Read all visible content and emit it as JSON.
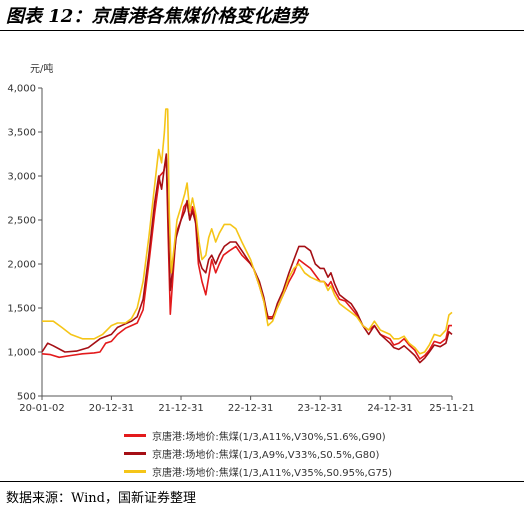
{
  "title": "图表 12：京唐港各焦煤价格变化趋势",
  "source": "数据来源：Wind，国新证券整理",
  "chart_data": {
    "type": "line",
    "ylabel": "元/吨",
    "ylim": [
      500,
      4000
    ],
    "yticks": [
      500,
      1000,
      1500,
      2000,
      2500,
      3000,
      3500,
      4000
    ],
    "ytick_labels": [
      "500",
      "1,000",
      "1,500",
      "2,000",
      "2,500",
      "3,000",
      "3,500",
      "4,000"
    ],
    "xlim": [
      "2020-01-02",
      "2025-11-21"
    ],
    "xtick_labels": [
      "20-01-02",
      "20-12-31",
      "21-12-31",
      "22-12-31",
      "23-12-31",
      "24-12-31",
      "25-11-21"
    ],
    "xtick_dates": [
      "2020-01-02",
      "2020-12-31",
      "2021-12-31",
      "2022-12-31",
      "2023-12-31",
      "2024-12-31",
      "2025-11-21"
    ],
    "grid": false,
    "legend_position": "bottom",
    "series": [
      {
        "name": "京唐港:场地价:焦煤(1/3,A11%,V30%,S1.6%,G90)",
        "color": "#e31a1c",
        "points": [
          [
            "2020-01-02",
            980
          ],
          [
            "2020-02-15",
            970
          ],
          [
            "2020-04-01",
            940
          ],
          [
            "2020-06-01",
            960
          ],
          [
            "2020-08-01",
            980
          ],
          [
            "2020-10-01",
            990
          ],
          [
            "2020-11-01",
            1000
          ],
          [
            "2020-12-01",
            1100
          ],
          [
            "2020-12-31",
            1120
          ],
          [
            "2021-02-01",
            1200
          ],
          [
            "2021-03-15",
            1270
          ],
          [
            "2021-04-15",
            1300
          ],
          [
            "2021-05-15",
            1330
          ],
          [
            "2021-06-15",
            1480
          ],
          [
            "2021-07-15",
            2000
          ],
          [
            "2021-08-15",
            2580
          ],
          [
            "2021-09-10",
            3000
          ],
          [
            "2021-10-01",
            3050
          ],
          [
            "2021-10-15",
            3200
          ],
          [
            "2021-10-25",
            2300
          ],
          [
            "2021-11-05",
            1430
          ],
          [
            "2021-11-20",
            1900
          ],
          [
            "2021-12-05",
            2350
          ],
          [
            "2021-12-31",
            2500
          ],
          [
            "2022-01-15",
            2650
          ],
          [
            "2022-02-01",
            2700
          ],
          [
            "2022-02-15",
            2500
          ],
          [
            "2022-03-01",
            2650
          ],
          [
            "2022-03-15",
            2550
          ],
          [
            "2022-04-01",
            2000
          ],
          [
            "2022-04-20",
            1800
          ],
          [
            "2022-05-10",
            1650
          ],
          [
            "2022-05-25",
            1850
          ],
          [
            "2022-06-10",
            2050
          ],
          [
            "2022-07-01",
            1900
          ],
          [
            "2022-07-20",
            2000
          ],
          [
            "2022-08-10",
            2100
          ],
          [
            "2022-09-10",
            2150
          ],
          [
            "2022-10-15",
            2200
          ],
          [
            "2022-11-15",
            2100
          ],
          [
            "2022-12-31",
            2000
          ],
          [
            "2023-01-15",
            1950
          ],
          [
            "2023-02-15",
            1750
          ],
          [
            "2023-03-10",
            1580
          ],
          [
            "2023-04-01",
            1400
          ],
          [
            "2023-04-25",
            1400
          ],
          [
            "2023-05-20",
            1500
          ],
          [
            "2023-06-20",
            1650
          ],
          [
            "2023-07-20",
            1800
          ],
          [
            "2023-08-15",
            1900
          ],
          [
            "2023-09-10",
            2050
          ],
          [
            "2023-10-10",
            2000
          ],
          [
            "2023-11-10",
            1950
          ],
          [
            "2023-12-31",
            1800
          ],
          [
            "2024-01-20",
            1800
          ],
          [
            "2024-02-10",
            1750
          ],
          [
            "2024-02-25",
            1800
          ],
          [
            "2024-03-15",
            1700
          ],
          [
            "2024-04-10",
            1600
          ],
          [
            "2024-05-10",
            1580
          ],
          [
            "2024-06-10",
            1500
          ],
          [
            "2024-07-10",
            1420
          ],
          [
            "2024-08-10",
            1300
          ],
          [
            "2024-09-10",
            1250
          ],
          [
            "2024-10-10",
            1300
          ],
          [
            "2024-11-10",
            1200
          ],
          [
            "2024-12-31",
            1150
          ],
          [
            "2025-01-20",
            1080
          ],
          [
            "2025-02-15",
            1100
          ],
          [
            "2025-03-15",
            1150
          ],
          [
            "2025-04-10",
            1080
          ],
          [
            "2025-05-10",
            1020
          ],
          [
            "2025-06-05",
            920
          ],
          [
            "2025-07-01",
            960
          ],
          [
            "2025-07-25",
            1020
          ],
          [
            "2025-08-20",
            1120
          ],
          [
            "2025-09-20",
            1100
          ],
          [
            "2025-10-20",
            1150
          ],
          [
            "2025-11-05",
            1300
          ],
          [
            "2025-11-21",
            1300
          ]
        ]
      },
      {
        "name": "京唐港:场地价:焦煤(1/3,A9%,V33%,S0.5%,G80)",
        "color": "#a50f15",
        "points": [
          [
            "2020-01-02",
            1000
          ],
          [
            "2020-02-01",
            1100
          ],
          [
            "2020-03-01",
            1070
          ],
          [
            "2020-05-01",
            1000
          ],
          [
            "2020-07-01",
            1010
          ],
          [
            "2020-09-01",
            1050
          ],
          [
            "2020-11-01",
            1150
          ],
          [
            "2020-12-31",
            1200
          ],
          [
            "2021-02-01",
            1280
          ],
          [
            "2021-03-15",
            1320
          ],
          [
            "2021-04-15",
            1350
          ],
          [
            "2021-05-15",
            1400
          ],
          [
            "2021-06-15",
            1600
          ],
          [
            "2021-07-15",
            2100
          ],
          [
            "2021-08-15",
            2700
          ],
          [
            "2021-09-05",
            3000
          ],
          [
            "2021-09-20",
            2850
          ],
          [
            "2021-10-05",
            3100
          ],
          [
            "2021-10-15",
            3250
          ],
          [
            "2021-10-25",
            2500
          ],
          [
            "2021-11-05",
            1700
          ],
          [
            "2021-11-20",
            2000
          ],
          [
            "2021-12-05",
            2300
          ],
          [
            "2021-12-31",
            2500
          ],
          [
            "2022-01-20",
            2600
          ],
          [
            "2022-02-01",
            2720
          ],
          [
            "2022-02-15",
            2500
          ],
          [
            "2022-03-01",
            2600
          ],
          [
            "2022-03-20",
            2450
          ],
          [
            "2022-04-05",
            2050
          ],
          [
            "2022-04-20",
            1950
          ],
          [
            "2022-05-10",
            1900
          ],
          [
            "2022-05-25",
            2050
          ],
          [
            "2022-06-10",
            2100
          ],
          [
            "2022-07-01",
            2000
          ],
          [
            "2022-07-20",
            2100
          ],
          [
            "2022-08-15",
            2200
          ],
          [
            "2022-09-15",
            2250
          ],
          [
            "2022-10-15",
            2250
          ],
          [
            "2022-11-15",
            2150
          ],
          [
            "2022-12-31",
            2000
          ],
          [
            "2023-01-15",
            1950
          ],
          [
            "2023-02-15",
            1800
          ],
          [
            "2023-03-10",
            1620
          ],
          [
            "2023-04-01",
            1380
          ],
          [
            "2023-04-25",
            1380
          ],
          [
            "2023-05-20",
            1550
          ],
          [
            "2023-06-20",
            1700
          ],
          [
            "2023-07-20",
            1900
          ],
          [
            "2023-08-15",
            2050
          ],
          [
            "2023-09-10",
            2200
          ],
          [
            "2023-10-10",
            2200
          ],
          [
            "2023-11-10",
            2150
          ],
          [
            "2023-12-05",
            2000
          ],
          [
            "2023-12-31",
            1950
          ],
          [
            "2024-01-20",
            1950
          ],
          [
            "2024-02-10",
            1850
          ],
          [
            "2024-02-25",
            1900
          ],
          [
            "2024-03-15",
            1780
          ],
          [
            "2024-04-10",
            1650
          ],
          [
            "2024-05-10",
            1600
          ],
          [
            "2024-06-10",
            1550
          ],
          [
            "2024-07-10",
            1450
          ],
          [
            "2024-08-10",
            1300
          ],
          [
            "2024-09-10",
            1200
          ],
          [
            "2024-10-10",
            1300
          ],
          [
            "2024-11-10",
            1200
          ],
          [
            "2024-12-31",
            1100
          ],
          [
            "2025-01-20",
            1050
          ],
          [
            "2025-02-15",
            1030
          ],
          [
            "2025-03-15",
            1070
          ],
          [
            "2025-04-10",
            1020
          ],
          [
            "2025-05-10",
            960
          ],
          [
            "2025-06-05",
            880
          ],
          [
            "2025-07-01",
            930
          ],
          [
            "2025-07-25",
            1000
          ],
          [
            "2025-08-20",
            1080
          ],
          [
            "2025-09-20",
            1060
          ],
          [
            "2025-10-20",
            1100
          ],
          [
            "2025-11-05",
            1230
          ],
          [
            "2025-11-21",
            1200
          ]
        ]
      },
      {
        "name": "京唐港:场地价:焦煤(1/3,A11%,V35%,S0.95%,G75)",
        "color": "#f5c518",
        "points": [
          [
            "2020-01-02",
            1350
          ],
          [
            "2020-03-01",
            1350
          ],
          [
            "2020-04-15",
            1280
          ],
          [
            "2020-06-01",
            1200
          ],
          [
            "2020-08-01",
            1150
          ],
          [
            "2020-10-01",
            1150
          ],
          [
            "2020-11-15",
            1200
          ],
          [
            "2020-12-31",
            1300
          ],
          [
            "2021-02-01",
            1330
          ],
          [
            "2021-03-15",
            1330
          ],
          [
            "2021-04-15",
            1380
          ],
          [
            "2021-05-15",
            1500
          ],
          [
            "2021-06-15",
            1800
          ],
          [
            "2021-07-15",
            2300
          ],
          [
            "2021-08-15",
            2900
          ],
          [
            "2021-09-05",
            3300
          ],
          [
            "2021-09-20",
            3150
          ],
          [
            "2021-10-05",
            3500
          ],
          [
            "2021-10-12",
            3760
          ],
          [
            "2021-10-22",
            3760
          ],
          [
            "2021-10-30",
            2600
          ],
          [
            "2021-11-10",
            1900
          ],
          [
            "2021-11-25",
            2200
          ],
          [
            "2021-12-10",
            2500
          ],
          [
            "2021-12-31",
            2650
          ],
          [
            "2022-01-20",
            2800
          ],
          [
            "2022-02-01",
            2920
          ],
          [
            "2022-02-15",
            2600
          ],
          [
            "2022-03-01",
            2750
          ],
          [
            "2022-03-20",
            2550
          ],
          [
            "2022-04-05",
            2250
          ],
          [
            "2022-04-20",
            2050
          ],
          [
            "2022-05-10",
            2100
          ],
          [
            "2022-05-25",
            2300
          ],
          [
            "2022-06-10",
            2400
          ],
          [
            "2022-07-01",
            2250
          ],
          [
            "2022-07-20",
            2350
          ],
          [
            "2022-08-15",
            2450
          ],
          [
            "2022-09-15",
            2450
          ],
          [
            "2022-10-15",
            2400
          ],
          [
            "2022-11-15",
            2250
          ],
          [
            "2022-12-31",
            2050
          ],
          [
            "2023-01-15",
            1950
          ],
          [
            "2023-02-15",
            1750
          ],
          [
            "2023-03-10",
            1580
          ],
          [
            "2023-04-01",
            1300
          ],
          [
            "2023-04-25",
            1350
          ],
          [
            "2023-05-20",
            1500
          ],
          [
            "2023-06-20",
            1650
          ],
          [
            "2023-07-20",
            1850
          ],
          [
            "2023-08-15",
            1950
          ],
          [
            "2023-09-10",
            2000
          ],
          [
            "2023-10-10",
            1900
          ],
          [
            "2023-11-10",
            1850
          ],
          [
            "2023-12-31",
            1800
          ],
          [
            "2024-01-20",
            1800
          ],
          [
            "2024-02-10",
            1700
          ],
          [
            "2024-02-25",
            1750
          ],
          [
            "2024-03-15",
            1650
          ],
          [
            "2024-04-10",
            1550
          ],
          [
            "2024-05-10",
            1500
          ],
          [
            "2024-06-10",
            1450
          ],
          [
            "2024-07-10",
            1400
          ],
          [
            "2024-08-10",
            1300
          ],
          [
            "2024-09-10",
            1250
          ],
          [
            "2024-10-10",
            1350
          ],
          [
            "2024-11-10",
            1250
          ],
          [
            "2024-12-31",
            1200
          ],
          [
            "2025-01-20",
            1150
          ],
          [
            "2025-02-15",
            1150
          ],
          [
            "2025-03-15",
            1180
          ],
          [
            "2025-04-10",
            1100
          ],
          [
            "2025-05-10",
            1050
          ],
          [
            "2025-06-05",
            980
          ],
          [
            "2025-07-01",
            1000
          ],
          [
            "2025-07-25",
            1080
          ],
          [
            "2025-08-20",
            1200
          ],
          [
            "2025-09-20",
            1180
          ],
          [
            "2025-10-20",
            1250
          ],
          [
            "2025-11-05",
            1420
          ],
          [
            "2025-11-21",
            1450
          ]
        ]
      }
    ]
  }
}
